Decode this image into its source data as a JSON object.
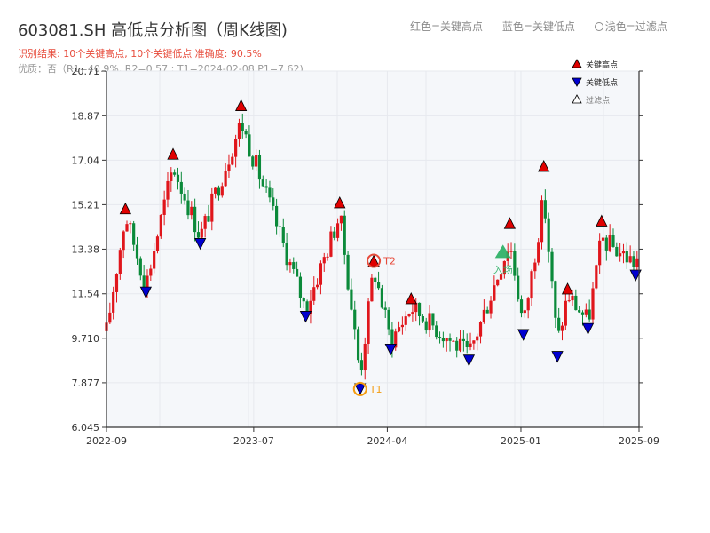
{
  "header": {
    "title": "603081.SH 高低点分析图（周K线图)",
    "legend_high": "红色=关键高点",
    "legend_low": "蓝色=关键低点",
    "legend_filtered": "浅色=过滤点",
    "result_text": "识别结果: 10个关键高点, 10个关键低点   准确度: 90.5%",
    "quality_text": "优质：否（R1=40.9%, R2=0.57 ; T1=2024-02-08 P1=7.62)"
  },
  "colors": {
    "up": "#e0161c",
    "down": "#0b8a3a",
    "high_marker": "#e00000",
    "low_marker": "#0000d0",
    "t1": "#f39c12",
    "t2": "#e74c3c",
    "axis": "#333333",
    "grid": "#e6e9ee",
    "band": "#f5f7fa",
    "signal": "#27ae60"
  },
  "chart_data": {
    "type": "candlestick",
    "title": "603081.SH 高低点分析图（周K线图)",
    "y_ticks": [
      "6.045",
      "7.877",
      "9.710",
      "11.54",
      "13.38",
      "15.21",
      "17.04",
      "18.87",
      "20.71"
    ],
    "ylim": [
      6.045,
      20.71
    ],
    "x_ticks": [
      "2022-09",
      "2023-07",
      "2024-04",
      "2025-01",
      "2025-09"
    ],
    "x_tick_dates": [
      "2022-09-01",
      "2023-07-01",
      "2024-04-01",
      "2025-01-01",
      "2025-09-01"
    ],
    "x_range": [
      "2022-09-01",
      "2025-09-01"
    ],
    "grid": true,
    "legend": {
      "position": "top-right",
      "entries": [
        "关键高点",
        "关键低点",
        "过滤点"
      ]
    },
    "key_highs": [
      {
        "date": "2022-10-10",
        "price": 15.05
      },
      {
        "date": "2023-01-16",
        "price": 17.3
      },
      {
        "date": "2023-06-05",
        "price": 19.3
      },
      {
        "date": "2023-12-25",
        "price": 15.3
      },
      {
        "date": "2024-05-20",
        "price": 11.35
      },
      {
        "date": "2024-12-09",
        "price": 14.45
      },
      {
        "date": "2025-02-17",
        "price": 16.8
      },
      {
        "date": "2025-04-07",
        "price": 11.75
      },
      {
        "date": "2025-06-16",
        "price": 14.55
      },
      {
        "date": "2024-03-04",
        "price": 12.9
      }
    ],
    "key_lows": [
      {
        "date": "2022-11-21",
        "price": 11.6
      },
      {
        "date": "2023-03-13",
        "price": 13.6
      },
      {
        "date": "2023-10-16",
        "price": 10.6
      },
      {
        "date": "2024-02-05",
        "price": 7.62
      },
      {
        "date": "2024-04-08",
        "price": 9.25
      },
      {
        "date": "2024-09-16",
        "price": 8.8
      },
      {
        "date": "2025-01-06",
        "price": 9.85
      },
      {
        "date": "2025-03-17",
        "price": 8.95
      },
      {
        "date": "2025-05-19",
        "price": 10.1
      },
      {
        "date": "2025-08-25",
        "price": 12.3
      }
    ],
    "filtered_points": [
      {
        "date": "2024-03-04",
        "price": 12.9
      }
    ],
    "annotations": [
      {
        "label": "T1",
        "date": "2024-02-05",
        "price": 7.62
      },
      {
        "label": "T2",
        "date": "2024-03-04",
        "price": 12.9
      }
    ],
    "signal": {
      "label": "入场",
      "date": "2024-11-25",
      "price": 13.2
    },
    "price_path": [
      [
        "2022-09-01",
        10.0
      ],
      [
        "2022-10-10",
        14.8
      ],
      [
        "2022-11-21",
        11.9
      ],
      [
        "2023-01-16",
        16.8
      ],
      [
        "2023-03-13",
        13.9
      ],
      [
        "2023-06-05",
        18.6
      ],
      [
        "2023-10-16",
        10.9
      ],
      [
        "2023-12-25",
        14.8
      ],
      [
        "2024-02-05",
        8.2
      ],
      [
        "2024-03-04",
        12.6
      ],
      [
        "2024-04-08",
        9.6
      ],
      [
        "2024-05-20",
        11.0
      ],
      [
        "2024-09-16",
        9.0
      ],
      [
        "2024-12-09",
        13.7
      ],
      [
        "2025-01-06",
        10.2
      ],
      [
        "2025-02-17",
        15.5
      ],
      [
        "2025-03-17",
        9.5
      ],
      [
        "2025-04-07",
        11.5
      ],
      [
        "2025-05-19",
        10.4
      ],
      [
        "2025-06-16",
        13.8
      ],
      [
        "2025-08-25",
        12.8
      ],
      [
        "2025-09-01",
        13.2
      ]
    ]
  }
}
